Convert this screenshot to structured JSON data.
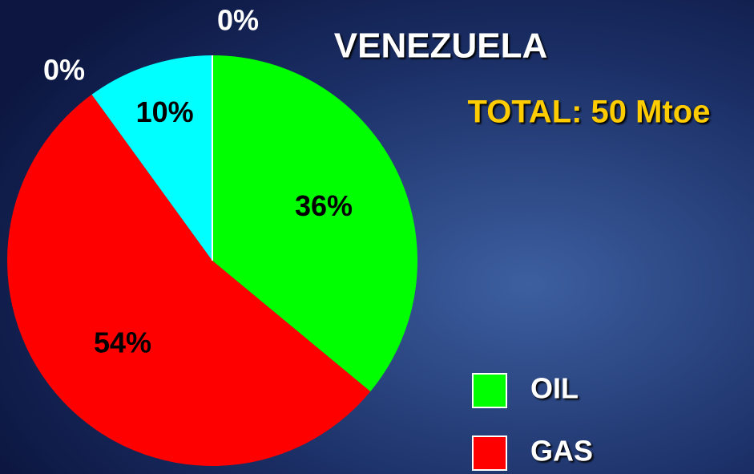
{
  "chart_data": {
    "type": "pie",
    "title": "VENEZUELA",
    "subtitle": "TOTAL: 50 Mtoe",
    "categories": [
      "OIL",
      "GAS",
      null,
      null,
      null
    ],
    "values": [
      36,
      54,
      10,
      0,
      0
    ],
    "value_labels": [
      "36%",
      "54%",
      "10%",
      "0%",
      "0%"
    ],
    "colors": [
      "#00ff00",
      "#ff0000",
      "#00ffff",
      "#ffffff",
      "#ffffff"
    ]
  }
}
